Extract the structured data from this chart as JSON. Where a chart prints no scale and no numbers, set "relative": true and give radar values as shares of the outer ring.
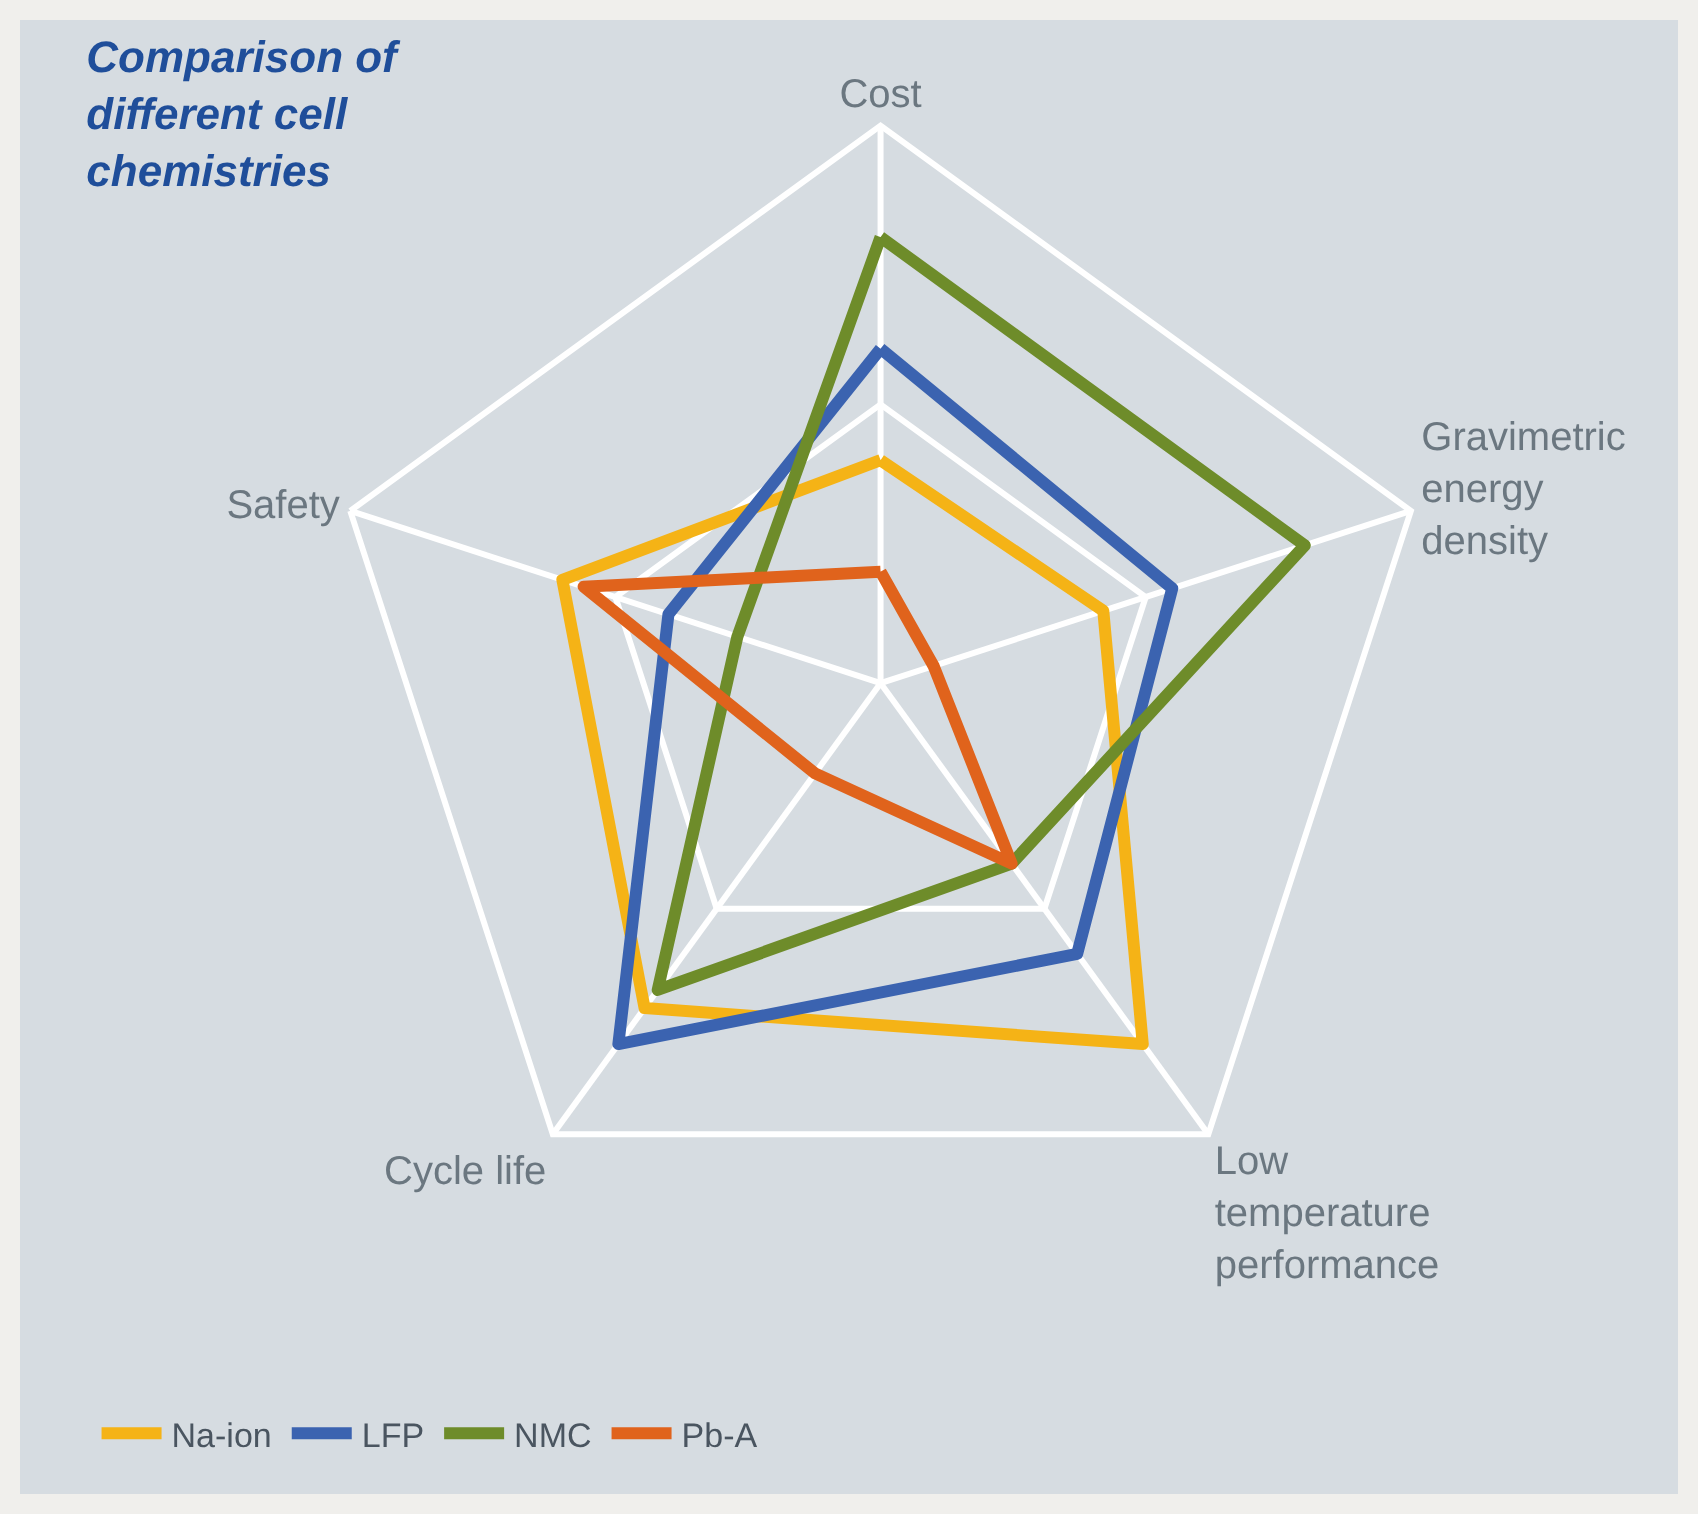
{
  "chart_data": {
    "type": "radar",
    "title": "Comparison of different cell chemistries",
    "relative": true,
    "grid": true,
    "legend": "bottom",
    "marker": "none",
    "line_style": "solid",
    "categories": [
      "Cost",
      "Gravimetric energy density",
      "Low temperature performance",
      "Cycle life",
      "Safety"
    ],
    "series": [
      {
        "name": "Na-ion",
        "color": "#f5b316",
        "values": [
          0.4,
          0.42,
          0.8,
          0.72,
          0.6
        ]
      },
      {
        "name": "LFP",
        "color": "#3b63b0",
        "values": [
          0.6,
          0.55,
          0.6,
          0.8,
          0.4
        ]
      },
      {
        "name": "NMC",
        "color": "#6e8c2a",
        "values": [
          0.8,
          0.8,
          0.4,
          0.68,
          0.27
        ]
      },
      {
        "name": "Pb-A",
        "color": "#e0631c",
        "values": [
          0.2,
          0.1,
          0.4,
          0.2,
          0.56
        ]
      }
    ]
  }
}
